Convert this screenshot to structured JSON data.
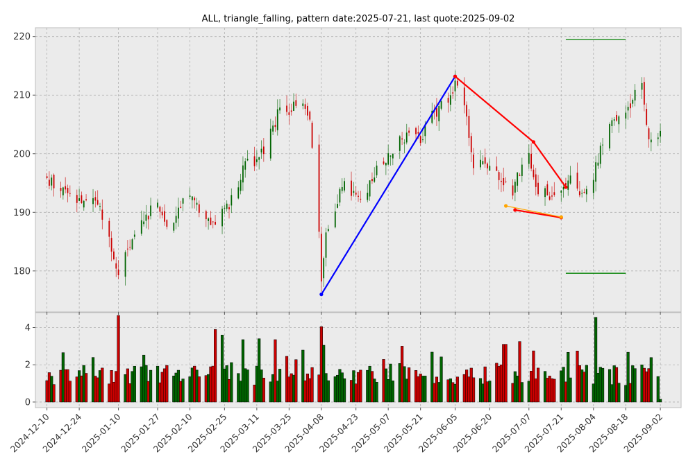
{
  "chart_data": {
    "type": "candlestick",
    "title": "ALL, triangle_falling, pattern date:2025-07-21, last quote:2025-09-02",
    "x_tick_labels": [
      "2024-12-10",
      "2024-12-24",
      "2025-01-10",
      "2025-01-27",
      "2025-02-10",
      "2025-02-25",
      "2025-03-11",
      "2025-03-25",
      "2025-04-08",
      "2025-04-23",
      "2025-05-07",
      "2025-05-21",
      "2025-06-05",
      "2025-06-20",
      "2025-07-07",
      "2025-07-21",
      "2025-08-04",
      "2025-08-18",
      "2025-09-02"
    ],
    "x_range": [
      "2024-12-10",
      "2025-09-02"
    ],
    "price_panel": {
      "ylim": [
        173,
        221.5
      ],
      "yticks": [
        180,
        190,
        200,
        210,
        220
      ],
      "close_anchors": [
        [
          "2024-12-10",
          195.5
        ],
        [
          "2024-12-17",
          193.5
        ],
        [
          "2024-12-24",
          192
        ],
        [
          "2025-01-02",
          191
        ],
        [
          "2025-01-06",
          186
        ],
        [
          "2025-01-10",
          179.5
        ],
        [
          "2025-01-14",
          184
        ],
        [
          "2025-01-21",
          189
        ],
        [
          "2025-01-27",
          191.5
        ],
        [
          "2025-01-31",
          187.5
        ],
        [
          "2025-02-05",
          190.5
        ],
        [
          "2025-02-10",
          192.5
        ],
        [
          "2025-02-14",
          191
        ],
        [
          "2025-02-20",
          188
        ],
        [
          "2025-02-25",
          190
        ],
        [
          "2025-03-03",
          194
        ],
        [
          "2025-03-07",
          200
        ],
        [
          "2025-03-11",
          198.5
        ],
        [
          "2025-03-18",
          204
        ],
        [
          "2025-03-21",
          208.5
        ],
        [
          "2025-03-25",
          207.5
        ],
        [
          "2025-03-31",
          209.5
        ],
        [
          "2025-04-03",
          205
        ],
        [
          "2025-04-07",
          186.5
        ],
        [
          "2025-04-08",
          178
        ],
        [
          "2025-04-10",
          186
        ],
        [
          "2025-04-15",
          192
        ],
        [
          "2025-04-18",
          195
        ],
        [
          "2025-04-23",
          192
        ],
        [
          "2025-04-28",
          194
        ],
        [
          "2025-05-02",
          197
        ],
        [
          "2025-05-07",
          199
        ],
        [
          "2025-05-12",
          202
        ],
        [
          "2025-05-16",
          204
        ],
        [
          "2025-05-21",
          202.5
        ],
        [
          "2025-05-27",
          207
        ],
        [
          "2025-05-30",
          208
        ],
        [
          "2025-06-05",
          211.5
        ],
        [
          "2025-06-09",
          208.5
        ],
        [
          "2025-06-13",
          197.5
        ],
        [
          "2025-06-18",
          199
        ],
        [
          "2025-06-24",
          196
        ],
        [
          "2025-06-30",
          193.5
        ],
        [
          "2025-07-03",
          197
        ],
        [
          "2025-07-07",
          199
        ],
        [
          "2025-07-11",
          193.5
        ],
        [
          "2025-07-16",
          193
        ],
        [
          "2025-07-21",
          193
        ],
        [
          "2025-07-24",
          195.5
        ],
        [
          "2025-07-29",
          194
        ],
        [
          "2025-08-01",
          194
        ],
        [
          "2025-08-04",
          196
        ],
        [
          "2025-08-08",
          202
        ],
        [
          "2025-08-13",
          206
        ],
        [
          "2025-08-18",
          207
        ],
        [
          "2025-08-22",
          210
        ],
        [
          "2025-08-25",
          211.5
        ],
        [
          "2025-08-28",
          203
        ],
        [
          "2025-09-02",
          203.5
        ]
      ],
      "pattern_lines": [
        {
          "color": "#0000ff",
          "points": [
            [
              "2025-04-08",
              176
            ],
            [
              "2025-06-05",
              213.2
            ]
          ]
        },
        {
          "color": "#ff0000",
          "points": [
            [
              "2025-06-05",
              213.2
            ],
            [
              "2025-07-09",
              202
            ],
            [
              "2025-07-23",
              194.3
            ]
          ]
        },
        {
          "color": "#ff0000",
          "points": [
            [
              "2025-07-01",
              190.4
            ],
            [
              "2025-07-21",
              189.1
            ]
          ]
        },
        {
          "color": "#ffa500",
          "points": [
            [
              "2025-06-27",
              191.1
            ],
            [
              "2025-07-21",
              189.2
            ]
          ]
        }
      ],
      "horizontal_levels": [
        {
          "color": "#008000",
          "y": 219.5,
          "x_range": [
            "2025-07-23",
            "2025-08-18"
          ]
        },
        {
          "color": "#008000",
          "y": 179.6,
          "x_range": [
            "2025-07-23",
            "2025-08-18"
          ]
        }
      ]
    },
    "volume_panel": {
      "ylim": [
        -0.3,
        4.8
      ],
      "yticks": [
        0,
        2,
        4
      ],
      "spikes": [
        [
          "2025-01-10",
          4.65
        ],
        [
          "2025-02-21",
          3.9
        ],
        [
          "2025-02-24",
          3.6
        ],
        [
          "2025-03-05",
          3.35
        ],
        [
          "2025-03-12",
          3.4
        ],
        [
          "2025-03-19",
          3.35
        ],
        [
          "2025-04-08",
          4.05
        ],
        [
          "2025-04-09",
          3.05
        ],
        [
          "2025-05-13",
          3.0
        ],
        [
          "2025-06-26",
          3.1
        ],
        [
          "2025-06-27",
          3.1
        ],
        [
          "2025-07-03",
          3.25
        ],
        [
          "2025-08-05",
          4.55
        ],
        [
          "2025-09-02",
          0.15
        ]
      ]
    },
    "colors": {
      "up": "#006400",
      "down": "#cc0000",
      "panel_bg": "#ebebeb",
      "grid": "#b0b0b0"
    }
  }
}
